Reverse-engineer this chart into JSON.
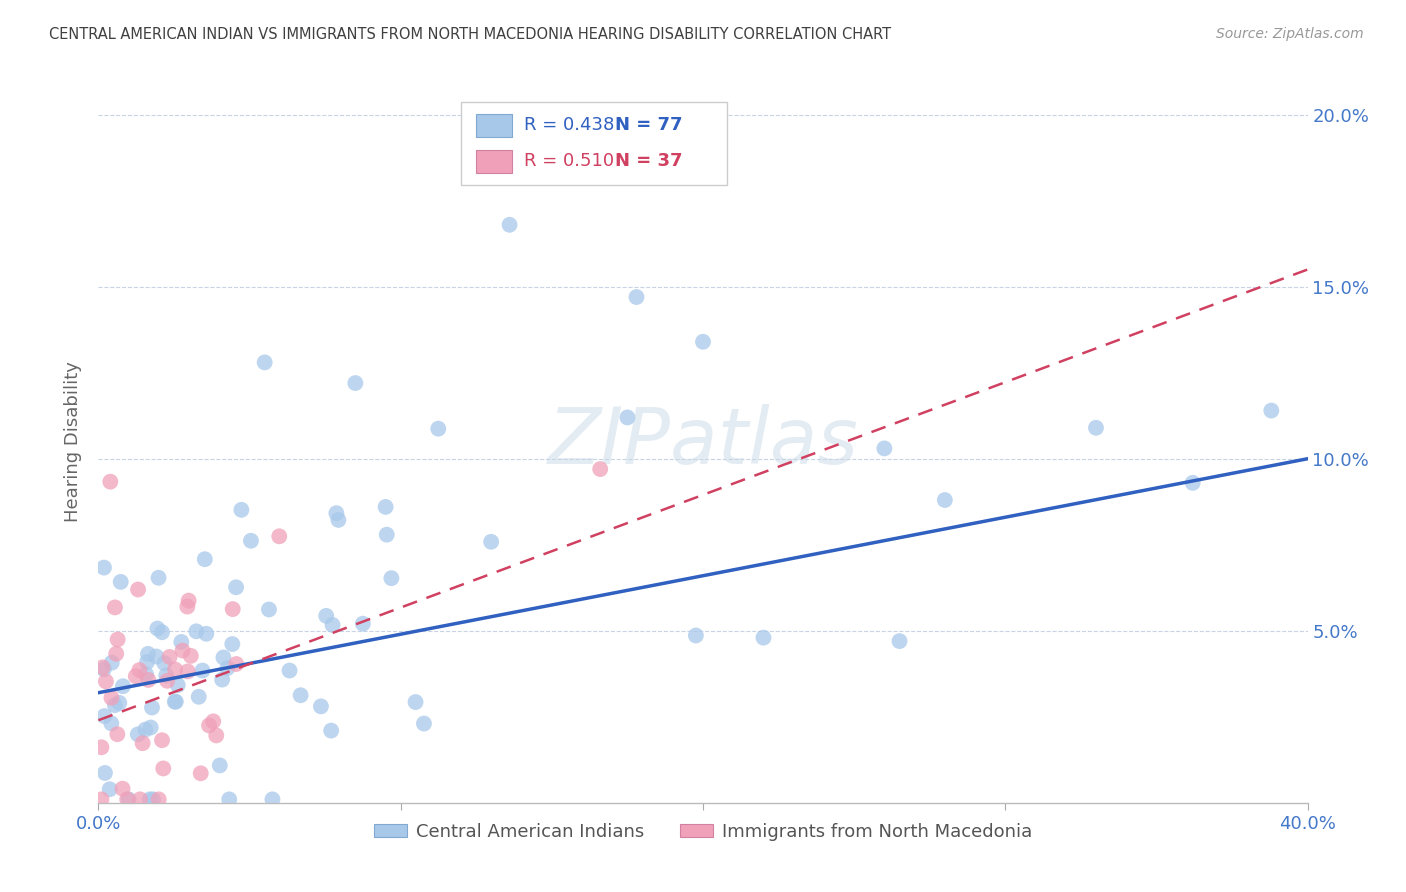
{
  "title": "CENTRAL AMERICAN INDIAN VS IMMIGRANTS FROM NORTH MACEDONIA HEARING DISABILITY CORRELATION CHART",
  "source": "Source: ZipAtlas.com",
  "ylabel": "Hearing Disability",
  "series1_name": "Central American Indians",
  "series2_name": "Immigrants from North Macedonia",
  "series1_color": "#a8c8ea",
  "series2_color": "#f0a0b8",
  "trendline1_color": "#3060c0",
  "trendline2_color": "#d04060",
  "background_color": "#ffffff",
  "grid_color": "#c8d4e4",
  "title_color": "#404040",
  "axis_label_color": "#4478c8",
  "watermark": "ZIPatlas",
  "legend_r1": "0.438",
  "legend_n1": "77",
  "legend_r2": "0.510",
  "legend_n2": "37",
  "xlim": [
    0.0,
    0.4
  ],
  "ylim": [
    0.0,
    0.21
  ],
  "xtick_positions": [
    0.0,
    0.1,
    0.2,
    0.3,
    0.4
  ],
  "xtick_labels": [
    "0.0%",
    "",
    "",
    "",
    "40.0%"
  ],
  "ytick_positions": [
    0.05,
    0.1,
    0.15,
    0.2
  ],
  "ytick_labels": [
    "5.0%",
    "10.0%",
    "15.0%",
    "20.0%"
  ],
  "trendline1_x": [
    0.0,
    0.4
  ],
  "trendline1_y": [
    0.032,
    0.1
  ],
  "trendline2_x": [
    0.0,
    0.4
  ],
  "trendline2_y": [
    0.024,
    0.155
  ]
}
